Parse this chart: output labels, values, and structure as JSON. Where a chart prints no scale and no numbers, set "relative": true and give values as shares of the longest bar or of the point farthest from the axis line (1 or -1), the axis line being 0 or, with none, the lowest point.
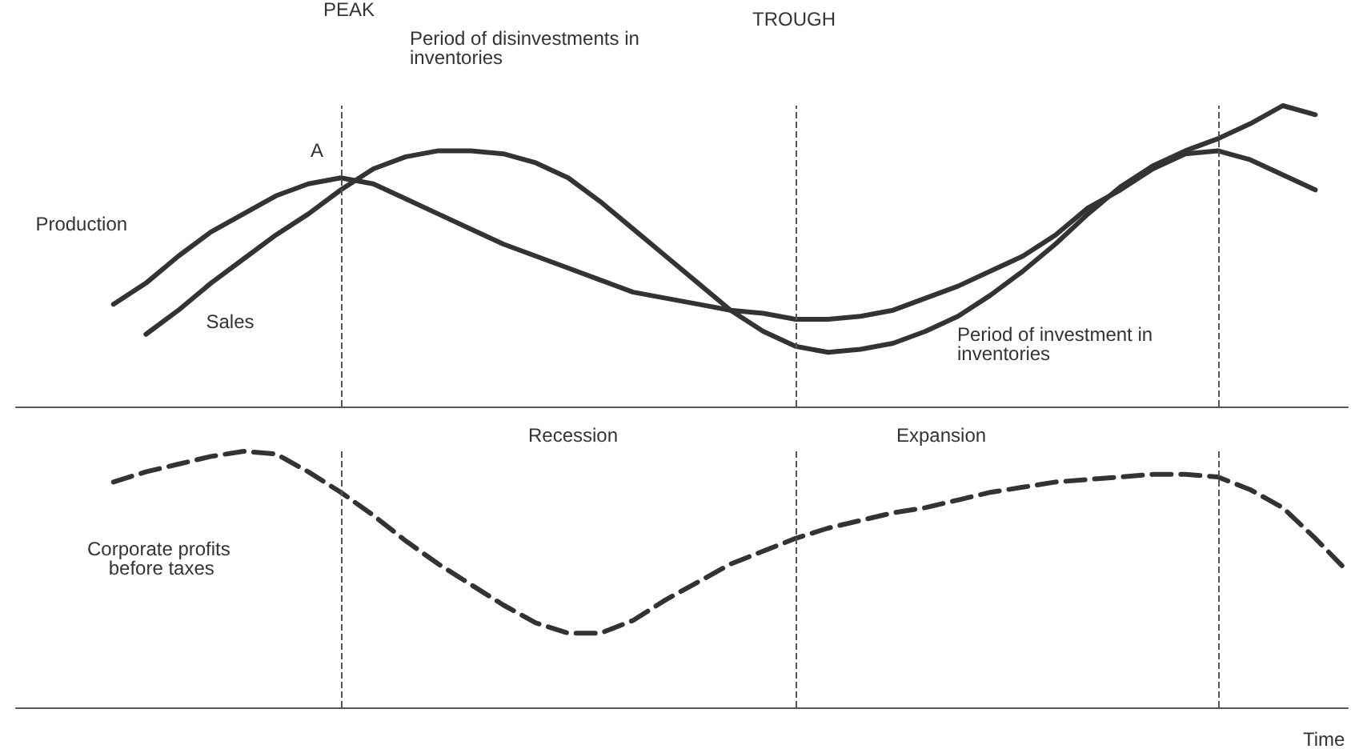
{
  "chart_data": [
    {
      "type": "line",
      "relative": true,
      "line_style": "solid",
      "grid": "x",
      "categories": [
        null,
        null,
        null,
        null,
        null,
        null,
        null,
        null,
        null,
        null,
        null,
        null,
        null,
        null,
        null,
        null,
        null,
        null,
        null,
        null,
        null,
        null,
        null,
        null,
        null,
        null,
        null,
        null,
        null,
        null,
        null,
        null,
        null,
        null,
        null,
        null,
        null,
        null,
        null,
        null,
        null,
        null
      ],
      "series": [
        {
          "name": "Production",
          "color": "#333333",
          "values": [
            null,
            null,
            null,
            0.34,
            0.41,
            0.5,
            0.58,
            0.64,
            0.7,
            0.74,
            0.76,
            0.74,
            0.69,
            0.64,
            0.59,
            0.54,
            0.5,
            0.46,
            0.42,
            0.38,
            0.36,
            0.34,
            0.32,
            0.31,
            0.29,
            0.29,
            0.3,
            0.32,
            0.36,
            0.4,
            0.45,
            0.5,
            0.57,
            0.66,
            0.72,
            0.79,
            0.84,
            0.85,
            0.82,
            0.77,
            0.72,
            null
          ]
        },
        {
          "name": "Sales",
          "color": "#333333",
          "values": [
            null,
            null,
            null,
            null,
            0.24,
            0.32,
            0.41,
            0.49,
            0.57,
            0.64,
            0.72,
            0.79,
            0.83,
            0.85,
            0.85,
            0.84,
            0.81,
            0.76,
            0.68,
            0.59,
            0.5,
            0.41,
            0.32,
            0.25,
            0.2,
            0.18,
            0.19,
            0.21,
            0.25,
            0.3,
            0.37,
            0.45,
            0.54,
            0.64,
            0.73,
            0.8,
            0.85,
            0.89,
            0.94,
            1.0,
            0.97,
            null
          ]
        }
      ],
      "annotations": [
        "A",
        "Period of disinvestments in inventories",
        "Period of investment in inventories",
        "PEAK",
        "TROUGH"
      ]
    },
    {
      "type": "line",
      "relative": true,
      "line_style": "dashed",
      "grid": "x",
      "xlabel": "Time",
      "categories": [
        null,
        null,
        null,
        null,
        null,
        null,
        null,
        null,
        null,
        null,
        null,
        null,
        null,
        null,
        null,
        null,
        null,
        null,
        null,
        null,
        null,
        null,
        null,
        null,
        null,
        null,
        null,
        null,
        null,
        null,
        null,
        null,
        null,
        null,
        null,
        null,
        null,
        null,
        null,
        null,
        null,
        null
      ],
      "series": [
        {
          "name": "Corporate profits before taxes",
          "color": "#333333",
          "values": [
            null,
            null,
            null,
            0.88,
            0.92,
            0.95,
            0.98,
            1.0,
            0.99,
            0.92,
            0.84,
            0.75,
            0.65,
            0.56,
            0.48,
            0.4,
            0.33,
            0.29,
            0.29,
            0.34,
            0.42,
            0.49,
            0.56,
            0.61,
            0.66,
            0.7,
            0.73,
            0.76,
            0.78,
            0.81,
            0.84,
            0.86,
            0.88,
            0.89,
            0.9,
            0.91,
            0.91,
            0.9,
            0.85,
            0.78,
            0.66,
            0.53
          ]
        }
      ],
      "annotations": [
        "Recession",
        "Expansion"
      ]
    }
  ]
}
